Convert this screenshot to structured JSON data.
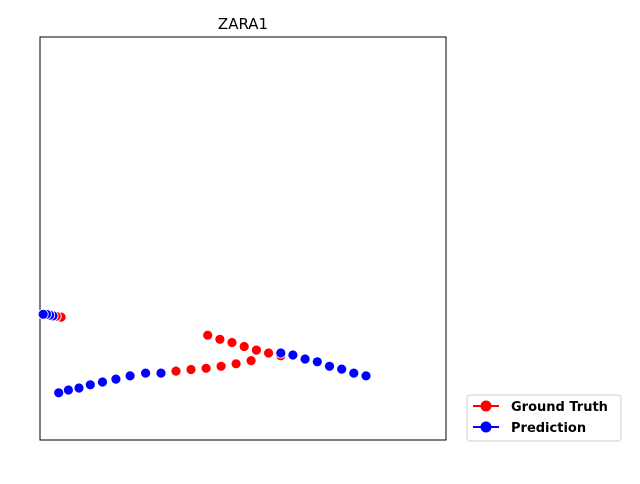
{
  "chart_data": {
    "type": "scatter",
    "title": "ZARA1",
    "xlabel": "",
    "ylabel": "",
    "xlim": [
      0,
      10
    ],
    "ylim": [
      0,
      10
    ],
    "grid": false,
    "axis_ticks": false,
    "legend": {
      "placement": "outside-bottom-right",
      "entries": [
        "Ground Truth",
        "Prediction"
      ]
    },
    "series": [
      {
        "name": "Ground Truth",
        "color": "#ff0000",
        "marker": "circle",
        "line": false,
        "groups": [
          {
            "x": [
              4.13,
              4.43,
              4.73,
              5.03,
              5.33,
              5.63,
              5.93
            ],
            "y": [
              2.6,
              2.5,
              2.42,
              2.32,
              2.23,
              2.16,
              2.09
            ]
          },
          {
            "x": [
              2.98,
              3.35,
              3.72,
              4.09,
              4.46,
              4.83,
              5.2
            ],
            "y": [
              1.66,
              1.71,
              1.75,
              1.78,
              1.83,
              1.89,
              1.97
            ]
          },
          {
            "x": [
              0.52,
              0.4,
              0.32,
              0.24
            ],
            "y": [
              3.05,
              3.07,
              3.08,
              3.09
            ]
          }
        ]
      },
      {
        "name": "Prediction",
        "color": "#0000ff",
        "marker": "circle",
        "line": false,
        "groups": [
          {
            "x": [
              5.93,
              6.23,
              6.53,
              6.83,
              7.13,
              7.43,
              7.73,
              8.03
            ],
            "y": [
              2.16,
              2.11,
              2.01,
              1.94,
              1.83,
              1.76,
              1.66,
              1.59
            ]
          },
          {
            "x": [
              0.46,
              0.7,
              0.96,
              1.24,
              1.54,
              1.87,
              2.22,
              2.6,
              2.98
            ],
            "y": [
              1.17,
              1.24,
              1.29,
              1.37,
              1.44,
              1.51,
              1.59,
              1.66,
              1.66
            ]
          },
          {
            "x": [
              0.32,
              0.24,
              0.16,
              0.08
            ],
            "y": [
              3.08,
              3.1,
              3.12,
              3.12
            ]
          }
        ]
      }
    ]
  }
}
